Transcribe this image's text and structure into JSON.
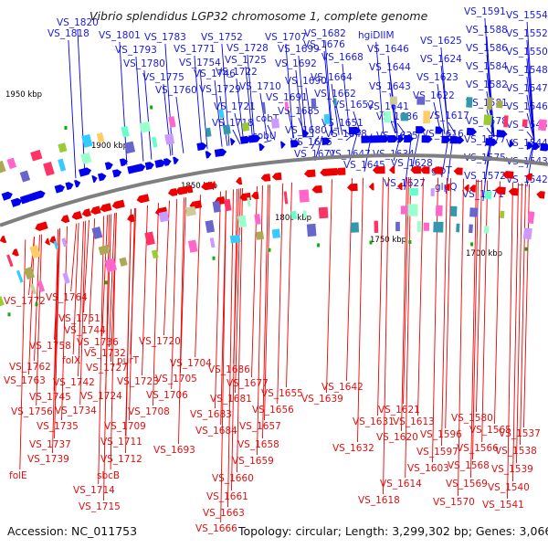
{
  "title": "Vibrio splendidus LGP32 chromosome 1, complete genome",
  "footer": {
    "accession": "Accession: NC_011753",
    "stats": "Topology: circular; Length: 3,299,302 bp; Genes: 3,066"
  },
  "kbp_labels": [
    "1950 kbp",
    "1900 kbp",
    "1850 kbp",
    "1800 kbp",
    "1750 kbp",
    "1700 kbp"
  ],
  "forward_labels": [
    "VS_1820",
    "VS_1818",
    "VS_1801",
    "VS_1793",
    "VS_1783",
    "VS_1780",
    "VS_1775",
    "VS_1771",
    "VS_1760",
    "VS_1754",
    "VS_1752",
    "VS_1746",
    "VS_1729",
    "VS_1728",
    "VS_1725",
    "VS_1722",
    "VS_1721",
    "VS_1718",
    "VS_1710",
    "VS_1707",
    "VS_1699",
    "VS_1692",
    "VS_1691",
    "VS_1690",
    "VS_1685",
    "VS_1682",
    "VS_1680",
    "VS_1676",
    "VS_1675",
    "VS_1671",
    "VS_1668",
    "VS_1664",
    "VS_1662",
    "VS_1652",
    "VS_1651",
    "VS_1648",
    "VS_1647",
    "VS_1646",
    "VS_1645",
    "VS_1644",
    "VS_1643",
    "VS_1641",
    "VS_1636",
    "VS_1635",
    "VS_1634",
    "VS_1628",
    "VS_1627",
    "VS_1625",
    "VS_1624",
    "VS_1623",
    "VS_1622",
    "VS_1617",
    "VS_1616",
    "VS_1591",
    "VS_1588",
    "VS_1586",
    "VS_1584",
    "VS_1582",
    "VS_1581",
    "VS_1578",
    "VS_1577",
    "VS_1575",
    "VS_1572",
    "VS_1571",
    "VS_1554",
    "VS_1552",
    "VS_1550",
    "VS_1548",
    "VS_1547",
    "VS_1546",
    "VS_1545",
    "VS_1544",
    "VS_1543",
    "VS_1542",
    "cobT",
    "cobU",
    "hgiDIIM",
    "glpT",
    "glpQ"
  ],
  "reverse_labels": [
    "VS_1772",
    "VS_1764",
    "VS_1758",
    "VS_1751",
    "VS_1744",
    "VS_1736",
    "VS_1732",
    "VS_1762",
    "VS_1763",
    "VS_1745",
    "VS_1742",
    "VS_1756",
    "VS_1734",
    "VS_1735",
    "VS_1737",
    "VS_1739",
    "VS_1727",
    "VS_1724",
    "VS_1723",
    "VS_1720",
    "VS_1709",
    "VS_1706",
    "VS_1705",
    "VS_1704",
    "VS_1708",
    "VS_1711",
    "VS_1712",
    "VS_1714",
    "VS_1715",
    "VS_1693",
    "VS_1686",
    "VS_1684",
    "VS_1683",
    "VS_1681",
    "VS_1677",
    "VS_1663",
    "VS_1666",
    "VS_1660",
    "VS_1661",
    "VS_1659",
    "VS_1658",
    "VS_1657",
    "VS_1656",
    "VS_1655",
    "VS_1642",
    "VS_1639",
    "VS_1632",
    "VS_1631",
    "VS_1621",
    "VS_1620",
    "VS_1618",
    "VS_1614",
    "VS_1613",
    "VS_1603",
    "VS_1597",
    "VS_1596",
    "VS_1580",
    "VS_1570",
    "VS_1569",
    "VS_1568",
    "VS_1566",
    "VS_1565",
    "VS_1541",
    "VS_1540",
    "VS_1539",
    "VS_1538",
    "VS_1537",
    "folX",
    "folE",
    "purT",
    "sbcB"
  ],
  "colors": {
    "forward_strand": "#0000ee",
    "reverse_strand": "#ee0000",
    "backbone": "#7f7f7f",
    "rna": "#11aa11"
  }
}
